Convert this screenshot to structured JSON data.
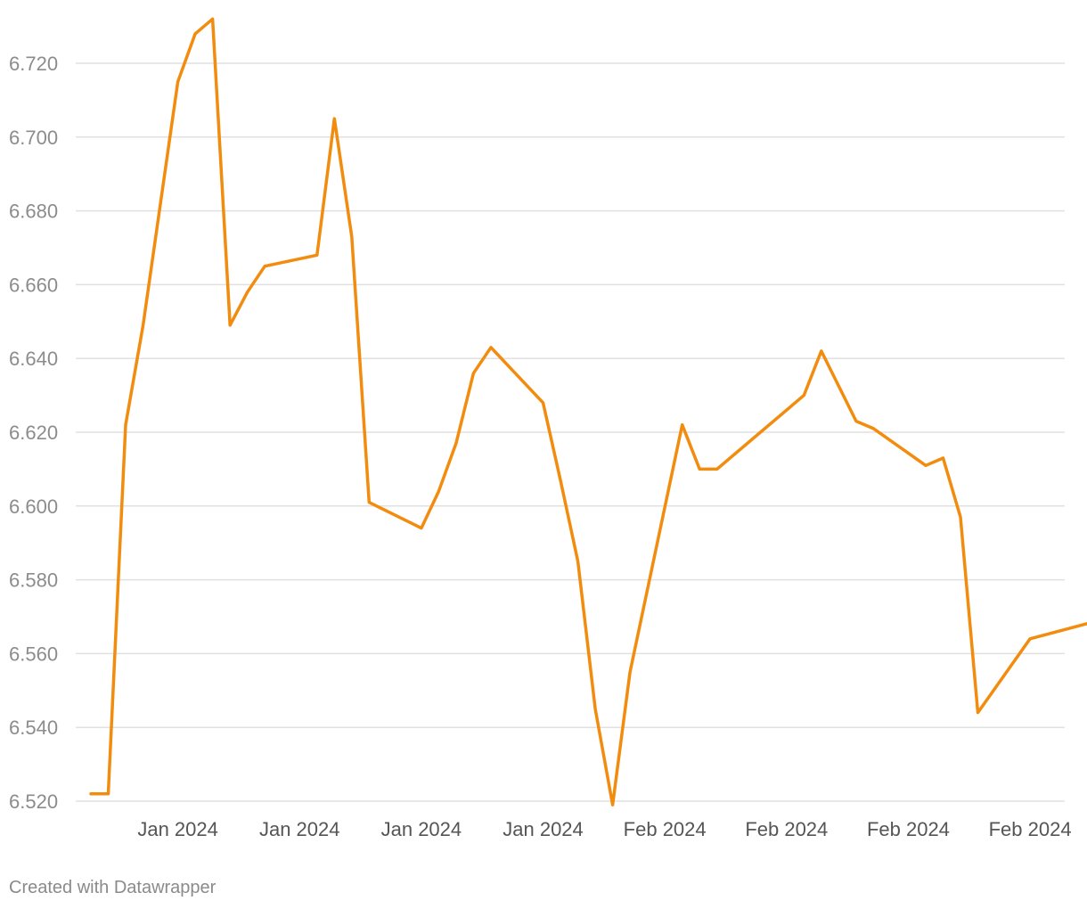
{
  "chart_data": {
    "type": "line",
    "title": "",
    "xlabel": "",
    "ylabel": "",
    "ylim": [
      6.52,
      6.732
    ],
    "yticks": [
      6.52,
      6.54,
      6.56,
      6.58,
      6.6,
      6.62,
      6.64,
      6.66,
      6.68,
      6.7,
      6.72
    ],
    "ytick_labels": [
      "6.520",
      "6.540",
      "6.560",
      "6.580",
      "6.600",
      "6.620",
      "6.640",
      "6.660",
      "6.680",
      "6.700",
      "6.720"
    ],
    "xticks": [
      {
        "pos": 5.0,
        "label": "Jan 2024"
      },
      {
        "pos": 12.0,
        "label": "Jan 2024"
      },
      {
        "pos": 19.0,
        "label": "Jan 2024"
      },
      {
        "pos": 26.0,
        "label": "Jan 2024"
      },
      {
        "pos": 33.0,
        "label": "Feb 2024"
      },
      {
        "pos": 40.0,
        "label": "Feb 2024"
      },
      {
        "pos": 47.0,
        "label": "Feb 2024"
      },
      {
        "pos": 54.0,
        "label": "Feb 2024"
      }
    ],
    "grid": true,
    "color": "#f28c0f",
    "series": [
      {
        "x": [
          0,
          1,
          2,
          3,
          5,
          6,
          7,
          8,
          9,
          10,
          13,
          14,
          15,
          16,
          19,
          20,
          21,
          22,
          23,
          26,
          27,
          28,
          29,
          30,
          31,
          34,
          35,
          36,
          41,
          42,
          44,
          45,
          48,
          49,
          50,
          51,
          54
        ],
        "values": [
          6.522,
          6.522,
          6.622,
          6.649,
          6.715,
          6.728,
          6.732,
          6.649,
          6.658,
          6.665,
          6.668,
          6.705,
          6.673,
          6.601,
          6.594,
          6.604,
          6.617,
          6.636,
          6.643,
          6.628,
          6.607,
          6.585,
          6.545,
          6.519,
          6.555,
          6.622,
          6.61,
          6.61,
          6.63,
          6.642,
          6.623,
          6.621,
          6.611,
          6.613,
          6.597,
          6.544,
          6.564
        ]
      }
    ],
    "last_point": {
      "x": 58,
      "value": 6.569
    }
  },
  "footer": {
    "credit": "Created with Datawrapper"
  }
}
